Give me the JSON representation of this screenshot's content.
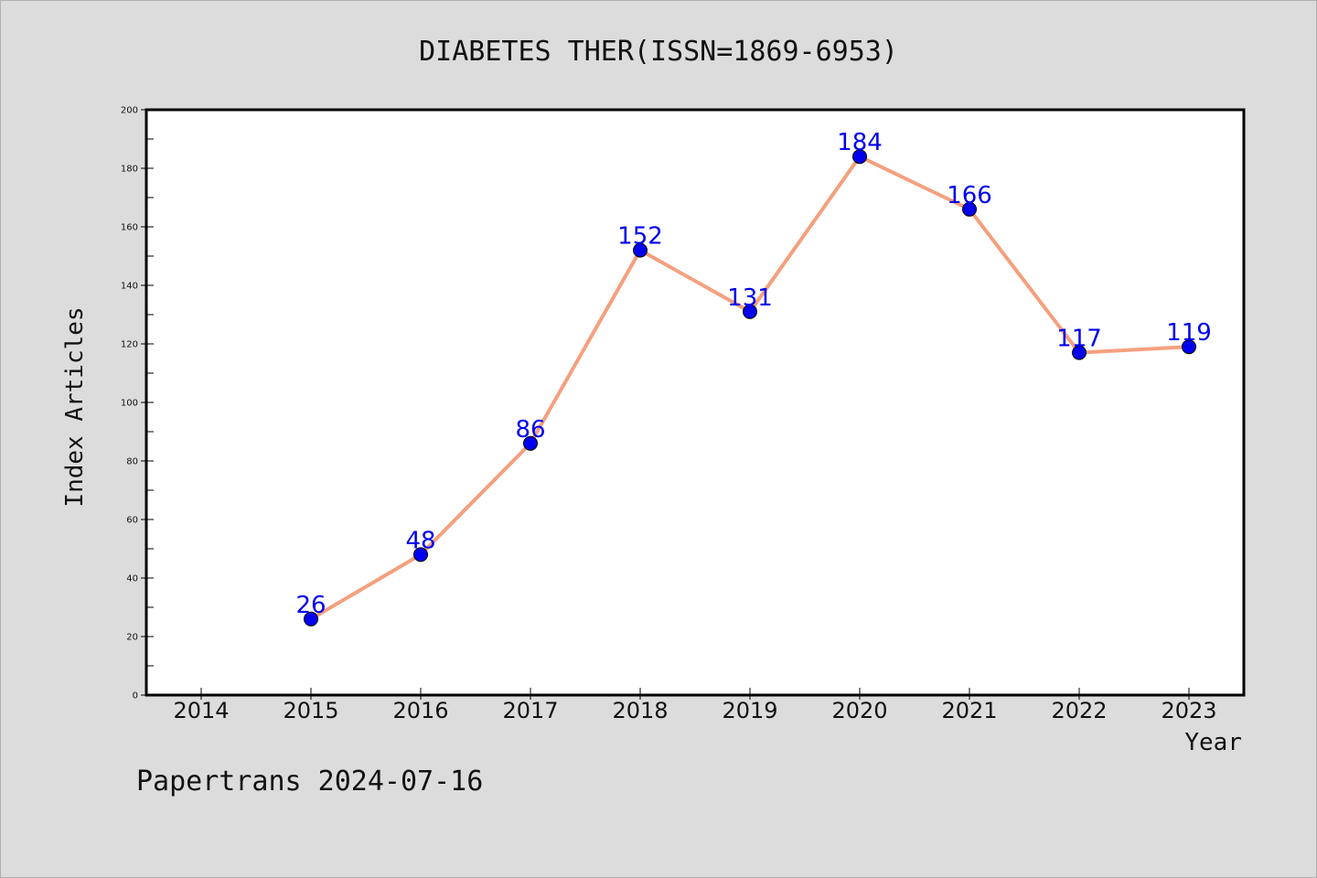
{
  "footer_text": "Papertrans 2024-07-16",
  "chart_data": {
    "type": "line",
    "title": "DIABETES THER(ISSN=1869-6953)",
    "xlabel": "Year",
    "ylabel": "Index Articles",
    "x_ticks": [
      "2014",
      "2015",
      "2016",
      "2017",
      "2018",
      "2019",
      "2020",
      "2021",
      "2022",
      "2023"
    ],
    "y_ticks": [
      0,
      20,
      40,
      60,
      80,
      100,
      120,
      140,
      160,
      180,
      200
    ],
    "ylim": [
      0,
      200
    ],
    "xlim": [
      2013.5,
      2023.5
    ],
    "grid": false,
    "series": [
      {
        "x": [
          2015,
          2016,
          2017,
          2018,
          2019,
          2020,
          2021,
          2022,
          2023
        ],
        "values": [
          26,
          48,
          86,
          152,
          131,
          184,
          166,
          117,
          119
        ],
        "labels": [
          "26",
          "48",
          "86",
          "152",
          "131",
          "184",
          "166",
          "117",
          "119"
        ],
        "line_color": "#f4a07e",
        "marker_color": "#0000ee"
      }
    ]
  }
}
